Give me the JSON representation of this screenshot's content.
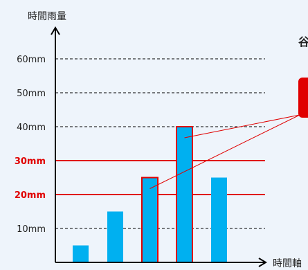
{
  "colors": {
    "background": "#eef4fb",
    "bar_fill": "#00b0f0",
    "highlight": "#e00000",
    "axis": "#000000",
    "label": "#222222"
  },
  "chart_data": {
    "type": "bar",
    "title": "",
    "ylabel": "時間雨量",
    "xlabel": "時間軸",
    "ylim": [
      0,
      70
    ],
    "y_ticks": [
      {
        "value": 10,
        "label": "10mm",
        "line": "dashed",
        "highlight": false
      },
      {
        "value": 20,
        "label": "20mm",
        "line": "solid",
        "highlight": true
      },
      {
        "value": 30,
        "label": "30mm",
        "line": "solid",
        "highlight": true
      },
      {
        "value": 40,
        "label": "40mm",
        "line": "dashed",
        "highlight": false
      },
      {
        "value": 50,
        "label": "50mm",
        "line": "dashed",
        "highlight": false
      },
      {
        "value": 60,
        "label": "60mm",
        "line": "dashed",
        "highlight": false
      }
    ],
    "values": [
      5,
      15,
      25,
      40,
      25
    ],
    "highlighted_bars": [
      false,
      false,
      true,
      true,
      false
    ],
    "grid": true
  },
  "annotation": {
    "text": "谷"
  }
}
